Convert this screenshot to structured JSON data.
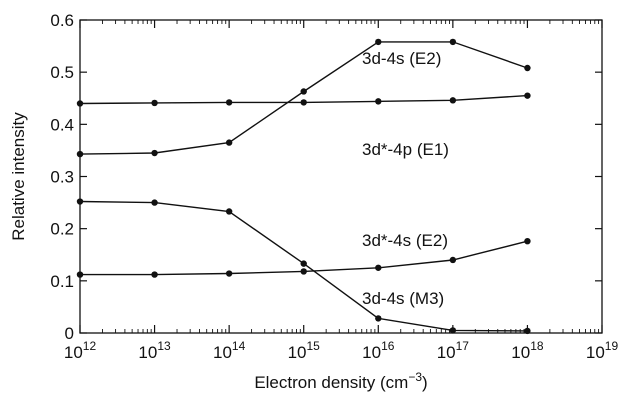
{
  "chart_data": {
    "type": "line",
    "x_scale": "log",
    "xlabel": "Electron density (cm⁻³)",
    "xlabel_parts": {
      "main": "Electron density (cm",
      "sup": "−3",
      "close": ")"
    },
    "ylabel": "Relative intensity",
    "xlim": [
      1000000000000.0,
      1e+19
    ],
    "ylim": [
      0,
      0.6
    ],
    "grid": false,
    "x_ticks": [
      {
        "base": "10",
        "exp": "12",
        "value": 1000000000000.0
      },
      {
        "base": "10",
        "exp": "13",
        "value": 10000000000000.0
      },
      {
        "base": "10",
        "exp": "14",
        "value": 100000000000000.0
      },
      {
        "base": "10",
        "exp": "15",
        "value": 1000000000000000.0
      },
      {
        "base": "10",
        "exp": "16",
        "value": 1e+16
      },
      {
        "base": "10",
        "exp": "17",
        "value": 1e+17
      },
      {
        "base": "10",
        "exp": "18",
        "value": 1e+18
      },
      {
        "base": "10",
        "exp": "19",
        "value": 1e+19
      }
    ],
    "y_ticks": [
      "0",
      "0.1",
      "0.2",
      "0.3",
      "0.4",
      "0.5",
      "0.6"
    ],
    "x": [
      1000000000000.0,
      10000000000000.0,
      100000000000000.0,
      1000000000000000.0,
      1e+16,
      1e+17,
      1e+18
    ],
    "series": [
      {
        "name": "3d-4s (E2)",
        "values": [
          0.343,
          0.345,
          0.365,
          0.463,
          0.558,
          0.558,
          0.508
        ]
      },
      {
        "name": "3d*-4p (E1)",
        "values": [
          0.44,
          0.441,
          0.442,
          0.442,
          0.444,
          0.446,
          0.455
        ]
      },
      {
        "name": "3d*-4s (E2)",
        "values": [
          0.112,
          0.112,
          0.114,
          0.118,
          0.125,
          0.14,
          0.176
        ]
      },
      {
        "name": "3d-4s (M3)",
        "values": [
          0.252,
          0.25,
          0.233,
          0.133,
          0.028,
          0.005,
          0.004
        ]
      }
    ]
  }
}
